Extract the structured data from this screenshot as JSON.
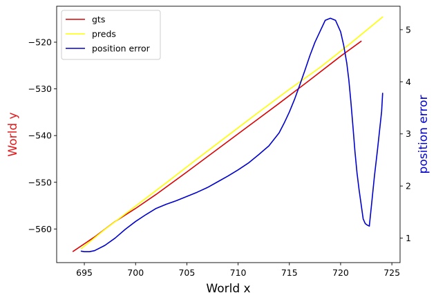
{
  "chart_data": {
    "type": "line",
    "xlabel": "World x",
    "ylabel_left": "World y",
    "ylabel_right": "position error",
    "xlim": [
      692.3,
      725.8
    ],
    "ylim_left": [
      -567.2,
      -512.3
    ],
    "ylim_right": [
      0.53,
      5.45
    ],
    "xticks": [
      695,
      700,
      705,
      710,
      715,
      720,
      725
    ],
    "yticks_left": [
      -560,
      -550,
      -540,
      -530,
      -520
    ],
    "yticks_right": [
      1,
      2,
      3,
      4,
      5
    ],
    "grid": false,
    "legend_position": "top-left",
    "colors": {
      "left_label": "#e41a1c",
      "right_label": "#0000cc"
    },
    "series": [
      {
        "name": "gts",
        "axis": "left",
        "color": "#dd0000",
        "x": [
          693.9,
          696.0,
          698.0,
          700.0,
          702.0,
          705.0,
          708.0,
          711.0,
          714.0,
          717.0,
          720.0,
          722.0
        ],
        "y": [
          -564.8,
          -561.7,
          -558.4,
          -555.6,
          -552.6,
          -547.8,
          -542.9,
          -538.0,
          -533.1,
          -528.1,
          -523.0,
          -519.8
        ]
      },
      {
        "name": "preds",
        "axis": "left",
        "color": "#ffff00",
        "x": [
          694.7,
          697.0,
          700.0,
          703.0,
          706.0,
          709.0,
          712.0,
          715.0,
          718.0,
          721.0,
          724.1
        ],
        "y": [
          -564.2,
          -560.1,
          -555.1,
          -550.1,
          -545.0,
          -540.0,
          -535.0,
          -530.1,
          -525.4,
          -520.2,
          -514.6
        ]
      },
      {
        "name": "position error",
        "axis": "right",
        "color": "#0000cc",
        "x": [
          694.7,
          695.0,
          695.5,
          696.0,
          697.0,
          698.0,
          699.0,
          700.0,
          701.0,
          702.0,
          703.0,
          704.0,
          705.0,
          706.0,
          707.0,
          708.0,
          709.0,
          710.0,
          711.0,
          712.0,
          713.0,
          714.0,
          714.5,
          715.0,
          715.5,
          716.0,
          716.5,
          717.0,
          717.5,
          718.0,
          718.5,
          719.0,
          719.5,
          720.0,
          720.3,
          720.6,
          720.8,
          721.0,
          721.2,
          721.4,
          721.6,
          721.8,
          722.0,
          722.2,
          722.4,
          722.6,
          722.8,
          723.0,
          723.3,
          723.6,
          724.0,
          724.1
        ],
        "y": [
          0.75,
          0.74,
          0.74,
          0.76,
          0.86,
          1.0,
          1.17,
          1.32,
          1.45,
          1.57,
          1.65,
          1.72,
          1.8,
          1.88,
          1.97,
          2.08,
          2.19,
          2.31,
          2.44,
          2.6,
          2.77,
          3.02,
          3.21,
          3.42,
          3.66,
          3.93,
          4.21,
          4.5,
          4.76,
          4.97,
          5.18,
          5.22,
          5.18,
          4.96,
          4.7,
          4.36,
          4.04,
          3.62,
          3.15,
          2.66,
          2.25,
          1.93,
          1.65,
          1.37,
          1.28,
          1.25,
          1.23,
          1.61,
          2.19,
          2.7,
          3.43,
          3.78
        ]
      }
    ]
  }
}
